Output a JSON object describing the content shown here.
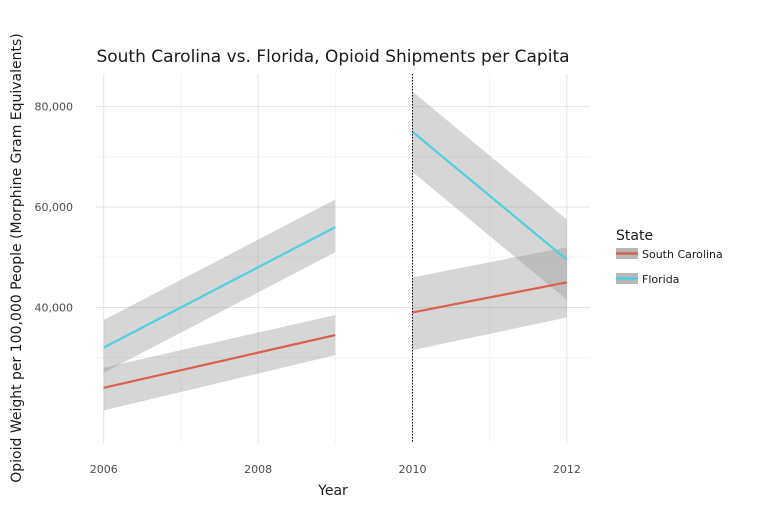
{
  "chart_data": {
    "type": "line",
    "title": "South Carolina vs. Florida, Opioid Shipments per Capita",
    "xlabel": "Year",
    "ylabel": "Opioid Weight per 100,000 People (Morphine Gram Equivalents)",
    "xlim": [
      2005.9,
      2012.3
    ],
    "ylim": [
      13000,
      86500
    ],
    "x_ticks": [
      2006,
      2008,
      2010,
      2012
    ],
    "x_tick_labels": [
      "2006",
      "2008",
      "2010",
      "2012"
    ],
    "y_ticks": [
      40000,
      60000,
      80000
    ],
    "y_tick_labels": [
      "40,000",
      "60,000",
      "80,000"
    ],
    "y_minor_ticks": [
      30000,
      50000,
      70000
    ],
    "x_minor_ticks": [
      2007,
      2009,
      2011
    ],
    "grid": true,
    "vline": {
      "x": 2010,
      "style": "dotted"
    },
    "legend": {
      "title": "State",
      "position": "right",
      "entries": [
        {
          "label": "South Carolina",
          "color": "#d9604f"
        },
        {
          "label": "Florida",
          "color": "#4fd0de"
        }
      ]
    },
    "series": [
      {
        "name": "South Carolina",
        "segment": "pre",
        "color": "#d9604f",
        "x": [
          2006,
          2009
        ],
        "y": [
          24000,
          34500
        ],
        "ci_lower": [
          19500,
          30500
        ],
        "ci_upper": [
          28000,
          38500
        ]
      },
      {
        "name": "Florida",
        "segment": "pre",
        "color": "#4fd0de",
        "x": [
          2006,
          2009
        ],
        "y": [
          32000,
          56000
        ],
        "ci_lower": [
          27000,
          51000
        ],
        "ci_upper": [
          37500,
          61500
        ]
      },
      {
        "name": "South Carolina",
        "segment": "post",
        "color": "#d9604f",
        "x": [
          2010,
          2012
        ],
        "y": [
          39000,
          45000
        ],
        "ci_lower": [
          31500,
          38000
        ],
        "ci_upper": [
          46000,
          52000
        ]
      },
      {
        "name": "Florida",
        "segment": "post",
        "color": "#4fd0de",
        "x": [
          2010,
          2012
        ],
        "y": [
          75000,
          49500
        ],
        "ci_lower": [
          67000,
          41500
        ],
        "ci_upper": [
          83000,
          57500
        ]
      }
    ],
    "ci_color": "#999999",
    "ci_opacity": 0.4
  }
}
